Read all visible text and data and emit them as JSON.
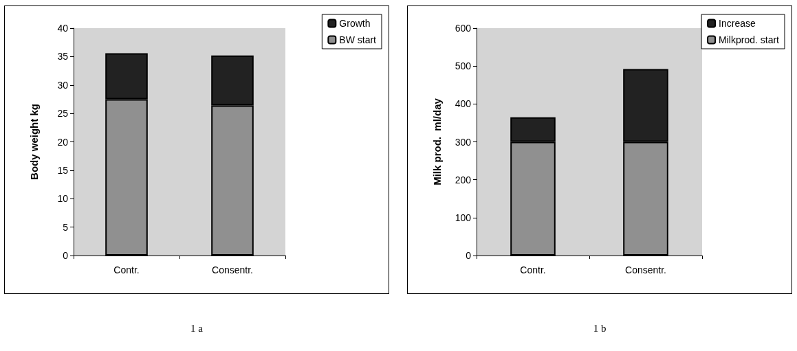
{
  "chart_data": [
    {
      "type": "bar",
      "stacked": true,
      "categories": [
        "Contr.",
        "Consentr."
      ],
      "ylabel": "Body weight kg",
      "ylim": [
        0,
        40
      ],
      "yticks": [
        0,
        5,
        10,
        15,
        20,
        25,
        30,
        35,
        40
      ],
      "grid": false,
      "legend": "top right",
      "annotations": [
        "1 a"
      ],
      "series": [
        {
          "name": "BW start",
          "color": "#909090",
          "values": [
            27.5,
            26.4
          ]
        },
        {
          "name": "Growth",
          "color": "#222222",
          "values": [
            8.1,
            8.8
          ]
        }
      ]
    },
    {
      "type": "bar",
      "stacked": true,
      "categories": [
        "Contr.",
        "Consentr."
      ],
      "ylabel": "Milk prod.  ml/day",
      "ylim": [
        0,
        600
      ],
      "yticks": [
        0,
        100,
        200,
        300,
        400,
        500,
        600
      ],
      "grid": false,
      "legend": "top right",
      "annotations": [
        "1 b"
      ],
      "series": [
        {
          "name": "Milkprod. start",
          "color": "#909090",
          "values": [
            300,
            300
          ]
        },
        {
          "name": "Increase",
          "color": "#222222",
          "values": [
            65,
            192
          ]
        }
      ]
    }
  ]
}
